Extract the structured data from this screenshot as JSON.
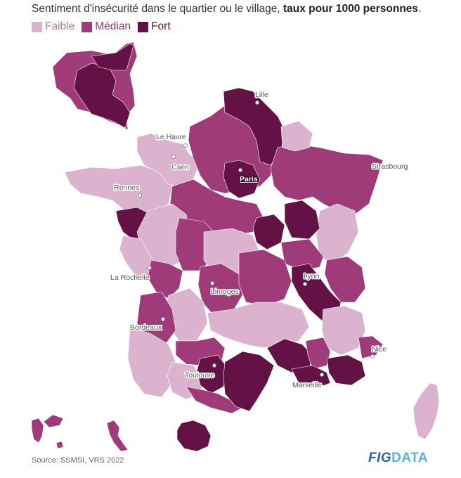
{
  "title": {
    "prefix": "Sentiment d'insécurité dans le quartier ou le village,",
    "bold": "taux pour 1000 personnes",
    "suffix": "."
  },
  "legend": [
    {
      "label": "Faible",
      "color": "#dcb3cf"
    },
    {
      "label": "Médian",
      "color": "#9e3b78"
    },
    {
      "label": "Fort",
      "color": "#641145"
    }
  ],
  "colors": {
    "faible": "#dcb3cf",
    "median": "#9e3b78",
    "fort": "#641145",
    "border": "#ffffff"
  },
  "cities": {
    "lille": "Lille",
    "le_havre": "Le Havre",
    "caen": "Caen",
    "paris": "Paris",
    "strasbourg": "Strasbourg",
    "rennes": "Rennes",
    "la_rochelle": "La Rochelle",
    "limoges": "Limoges",
    "lyon": "Lyon",
    "bordeaux": "Bordeaux",
    "nice": "Nice",
    "toulouse": "Toulouse",
    "marseille": "Marseille"
  },
  "regions": {
    "ile_de_france_inset": "fort",
    "hauts_de_france_north": "fort",
    "paris_area": "fort",
    "indre_loire": "fort",
    "nievre": "fort",
    "cote_dor_area": "fort",
    "rhone_isere": "fort",
    "mediterranean_coast": "fort",
    "var_alpes": "fort",
    "haute_garonne": "fort",
    "reunion": "fort",
    "brittany": "faible",
    "atlantic": "faible",
    "massif_central": "faible",
    "alsace_vosges": "faible",
    "alps_north": "faible",
    "corsica": "faible",
    "landes": "faible",
    "guadeloupe": "median",
    "martinique": "median",
    "north_east": "median"
  },
  "footer": {
    "source": "Source: SSMSI, VRS 2022",
    "logo_fig": "FIG",
    "logo_data": "DATA"
  }
}
